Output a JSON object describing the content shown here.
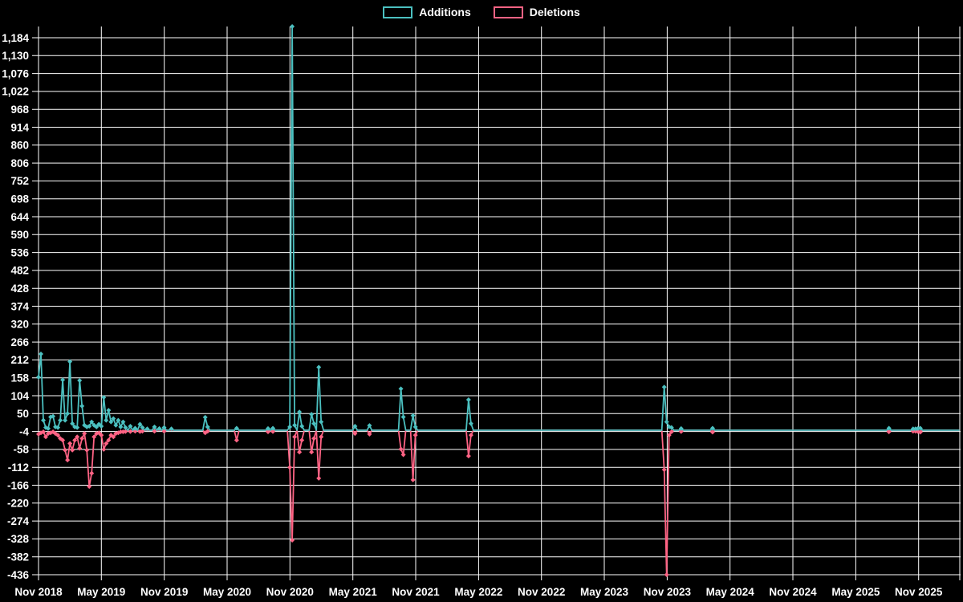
{
  "page": {
    "background": "#000000"
  },
  "legend": {
    "additions_label": "Additions",
    "deletions_label": "Deletions"
  },
  "chart_data": {
    "type": "line",
    "title": "",
    "legend_position": "top-center",
    "grid": true,
    "colors": {
      "additions": "#4BC0C0",
      "deletions": "#FF6384",
      "grid": "#FFFFFF",
      "text": "#FFFFFF",
      "background": "#000000"
    },
    "x": {
      "unit": "week",
      "weeks_total": 382,
      "weeks_per_tick": 26,
      "tick_labels": [
        "Nov 2018",
        "May 2019",
        "Nov 2019",
        "May 2020",
        "Nov 2020",
        "May 2021",
        "Nov 2021",
        "May 2022",
        "Nov 2022",
        "May 2023",
        "Nov 2023",
        "May 2024",
        "Nov 2024",
        "May 2025",
        "Nov 2025"
      ]
    },
    "y_axis": {
      "min": -436,
      "max": 1218,
      "tick_start": -436,
      "tick_step": 54,
      "tick_values": [
        -436,
        -382,
        -328,
        -274,
        -220,
        -166,
        -112,
        -58,
        -4,
        50,
        104,
        158,
        212,
        266,
        320,
        374,
        428,
        482,
        536,
        590,
        644,
        698,
        752,
        806,
        860,
        914,
        968,
        1022,
        1076,
        1130,
        1184
      ]
    },
    "series": [
      {
        "name": "Additions",
        "color": "#4BC0C0",
        "baseline": 0,
        "points_sparse": [
          [
            0,
            160
          ],
          [
            1,
            230
          ],
          [
            2,
            30
          ],
          [
            3,
            8
          ],
          [
            4,
            5
          ],
          [
            5,
            40
          ],
          [
            6,
            42
          ],
          [
            7,
            10
          ],
          [
            8,
            8
          ],
          [
            9,
            30
          ],
          [
            10,
            152
          ],
          [
            11,
            30
          ],
          [
            12,
            50
          ],
          [
            13,
            207
          ],
          [
            14,
            20
          ],
          [
            15,
            10
          ],
          [
            16,
            8
          ],
          [
            17,
            150
          ],
          [
            18,
            73
          ],
          [
            19,
            15
          ],
          [
            20,
            10
          ],
          [
            21,
            12
          ],
          [
            22,
            25
          ],
          [
            23,
            15
          ],
          [
            24,
            10
          ],
          [
            25,
            18
          ],
          [
            26,
            12
          ],
          [
            27,
            99
          ],
          [
            28,
            30
          ],
          [
            29,
            60
          ],
          [
            30,
            25
          ],
          [
            31,
            35
          ],
          [
            32,
            15
          ],
          [
            33,
            30
          ],
          [
            34,
            10
          ],
          [
            35,
            25
          ],
          [
            36,
            8
          ],
          [
            38,
            12
          ],
          [
            40,
            6
          ],
          [
            42,
            18
          ],
          [
            43,
            8
          ],
          [
            45,
            4
          ],
          [
            48,
            10
          ],
          [
            50,
            5
          ],
          [
            52,
            8
          ],
          [
            55,
            4
          ],
          [
            69,
            39
          ],
          [
            70,
            10
          ],
          [
            82,
            6
          ],
          [
            95,
            5
          ],
          [
            97,
            6
          ],
          [
            104,
            10
          ],
          [
            105,
            1218
          ],
          [
            106,
            15
          ],
          [
            108,
            55
          ],
          [
            109,
            12
          ],
          [
            113,
            48
          ],
          [
            114,
            20
          ],
          [
            116,
            190
          ],
          [
            117,
            25
          ],
          [
            131,
            12
          ],
          [
            137,
            14
          ],
          [
            150,
            125
          ],
          [
            151,
            40
          ],
          [
            155,
            44
          ],
          [
            156,
            10
          ],
          [
            178,
            92
          ],
          [
            179,
            20
          ],
          [
            259,
            130
          ],
          [
            260,
            25
          ],
          [
            261,
            10
          ],
          [
            262,
            8
          ],
          [
            266,
            5
          ],
          [
            279,
            6
          ],
          [
            352,
            6
          ],
          [
            362,
            4
          ],
          [
            363,
            4
          ],
          [
            364,
            5
          ],
          [
            365,
            6
          ]
        ]
      },
      {
        "name": "Deletions",
        "color": "#FF6384",
        "baseline": 0,
        "points_sparse": [
          [
            0,
            -12
          ],
          [
            1,
            -8
          ],
          [
            2,
            -5
          ],
          [
            3,
            -20
          ],
          [
            4,
            -10
          ],
          [
            5,
            -8
          ],
          [
            6,
            -5
          ],
          [
            7,
            -10
          ],
          [
            8,
            -15
          ],
          [
            9,
            -25
          ],
          [
            10,
            -30
          ],
          [
            11,
            -60
          ],
          [
            12,
            -90
          ],
          [
            13,
            -40
          ],
          [
            14,
            -60
          ],
          [
            15,
            -30
          ],
          [
            16,
            -20
          ],
          [
            17,
            -55
          ],
          [
            18,
            -25
          ],
          [
            19,
            -10
          ],
          [
            20,
            -60
          ],
          [
            21,
            -170
          ],
          [
            22,
            -130
          ],
          [
            23,
            -20
          ],
          [
            24,
            -10
          ],
          [
            25,
            -8
          ],
          [
            26,
            -15
          ],
          [
            27,
            -58
          ],
          [
            28,
            -40
          ],
          [
            29,
            -30
          ],
          [
            30,
            -15
          ],
          [
            31,
            -20
          ],
          [
            32,
            -10
          ],
          [
            33,
            -8
          ],
          [
            34,
            -5
          ],
          [
            35,
            -5
          ],
          [
            36,
            -4
          ],
          [
            38,
            -4
          ],
          [
            40,
            -3
          ],
          [
            42,
            -4
          ],
          [
            43,
            -3
          ],
          [
            48,
            -3
          ],
          [
            52,
            -3
          ],
          [
            69,
            -8
          ],
          [
            70,
            -3
          ],
          [
            82,
            -30
          ],
          [
            95,
            -5
          ],
          [
            97,
            -4
          ],
          [
            104,
            -112
          ],
          [
            105,
            -332
          ],
          [
            106,
            -20
          ],
          [
            108,
            -66
          ],
          [
            109,
            -30
          ],
          [
            113,
            -66
          ],
          [
            114,
            -25
          ],
          [
            116,
            -145
          ],
          [
            117,
            -20
          ],
          [
            131,
            -10
          ],
          [
            137,
            -12
          ],
          [
            150,
            -57
          ],
          [
            151,
            -74
          ],
          [
            155,
            -150
          ],
          [
            156,
            -15
          ],
          [
            178,
            -78
          ],
          [
            179,
            -15
          ],
          [
            259,
            -119
          ],
          [
            260,
            -436
          ],
          [
            261,
            -15
          ],
          [
            262,
            -5
          ],
          [
            266,
            -4
          ],
          [
            279,
            -6
          ],
          [
            352,
            -5
          ],
          [
            362,
            -3
          ],
          [
            363,
            -3
          ],
          [
            364,
            -4
          ],
          [
            365,
            -6
          ]
        ]
      }
    ]
  }
}
